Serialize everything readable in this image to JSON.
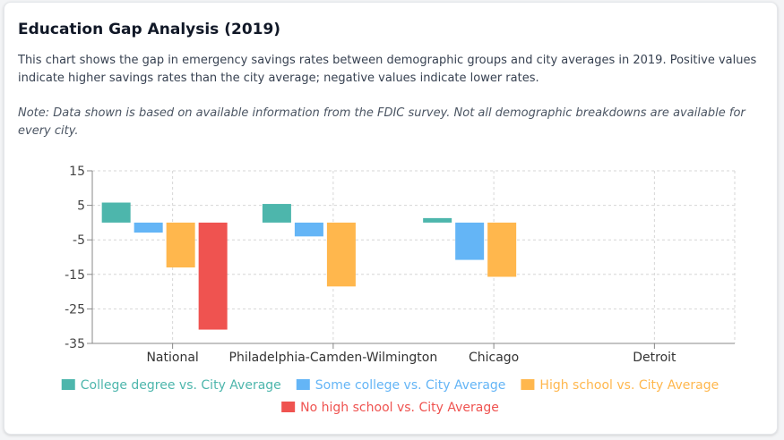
{
  "header": {
    "title": "Education Gap Analysis (2019)",
    "description": "This chart shows the gap in emergency savings rates between demographic groups and city averages in 2019. Positive values indicate higher savings rates than the city average; negative values indicate lower rates.",
    "note": "Note: Data shown is based on available information from the FDIC survey. Not all demographic breakdowns are available for every city."
  },
  "chart_data": {
    "type": "bar",
    "categories": [
      "National",
      "Philadelphia-Camden-Wilmington",
      "Chicago",
      "Detroit"
    ],
    "series": [
      {
        "name": "College degree vs. City Average",
        "color": "#4db6ac",
        "values": [
          5.8,
          5.4,
          1.3,
          null
        ]
      },
      {
        "name": "Some college vs. City Average",
        "color": "#64b5f6",
        "values": [
          -2.9,
          -4.0,
          -10.8,
          null
        ]
      },
      {
        "name": "High school vs. City Average",
        "color": "#ffb74d",
        "values": [
          -13.0,
          -18.5,
          -15.7,
          null
        ]
      },
      {
        "name": "No high school vs. City Average",
        "color": "#ef5350",
        "values": [
          -31.0,
          null,
          null,
          null
        ]
      }
    ],
    "ylim": [
      -35,
      15
    ],
    "yticks": [
      15,
      5,
      -5,
      -15,
      -25,
      -35
    ],
    "grid": true,
    "legend_position": "bottom"
  }
}
